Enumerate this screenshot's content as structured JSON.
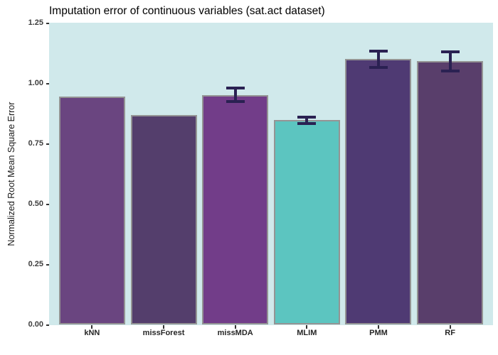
{
  "chart_data": {
    "type": "bar",
    "title": "Imputation error of continuous variables (sat.act dataset)",
    "ylabel": "Normalized Root Mean Square Error",
    "xlabel": "",
    "categories": [
      "kNN",
      "missForest",
      "missMDA",
      "MLIM",
      "PMM",
      "RF"
    ],
    "values": [
      0.945,
      0.87,
      0.953,
      0.848,
      1.101,
      1.092
    ],
    "error_bars": [
      null,
      null,
      0.028,
      0.014,
      0.033,
      0.04
    ],
    "bar_colors": [
      "#6a4580",
      "#543e6c",
      "#723d89",
      "#5cc5c0",
      "#4f3a73",
      "#593e6b"
    ],
    "ylim": [
      0,
      1.25
    ],
    "yticks": [
      0,
      0.25,
      0.5,
      0.75,
      1,
      1.25
    ],
    "ytick_labels": [
      "0.00",
      "0.25",
      "0.50",
      "0.75",
      "1.00",
      "1.25"
    ],
    "grid": false,
    "legend": "none",
    "panel_background": "#d0e9eb",
    "bar_border_color": "#949494",
    "errorbar_color": "#2a2152",
    "bar_width_ratio": 0.9
  }
}
